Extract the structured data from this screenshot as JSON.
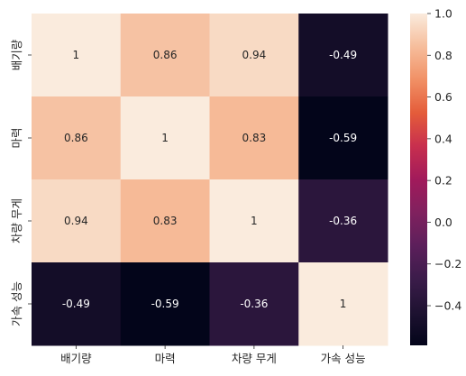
{
  "chart_data": {
    "type": "heatmap",
    "title": "",
    "xlabel": "",
    "ylabel": "",
    "x_categories": [
      "배기량",
      "마력",
      "차량 무게",
      "가속 성능"
    ],
    "y_categories": [
      "배기량",
      "마력",
      "차량 무게",
      "가속 성능"
    ],
    "values": [
      [
        1,
        0.86,
        0.94,
        -0.49
      ],
      [
        0.86,
        1,
        0.83,
        -0.59
      ],
      [
        0.94,
        0.83,
        1,
        -0.36
      ],
      [
        -0.49,
        -0.59,
        -0.36,
        1
      ]
    ],
    "cell_labels": [
      [
        "1",
        "0.86",
        "0.94",
        "-0.49"
      ],
      [
        "0.86",
        "1",
        "0.83",
        "-0.59"
      ],
      [
        "0.94",
        "0.83",
        "1",
        "-0.36"
      ],
      [
        "-0.49",
        "-0.59",
        "-0.36",
        "1"
      ]
    ],
    "colorbar": {
      "colormap": "rocket",
      "vmin": -0.59,
      "vmax": 1.0,
      "ticks": [
        1.0,
        0.8,
        0.6,
        0.4,
        0.2,
        0.0,
        -0.2,
        -0.4
      ],
      "tick_labels": [
        "1.0",
        "0.8",
        "0.6",
        "0.4",
        "0.2",
        "0.0",
        "−0.2",
        "−0.4"
      ]
    },
    "grid": false,
    "legend": "colorbar-right"
  }
}
